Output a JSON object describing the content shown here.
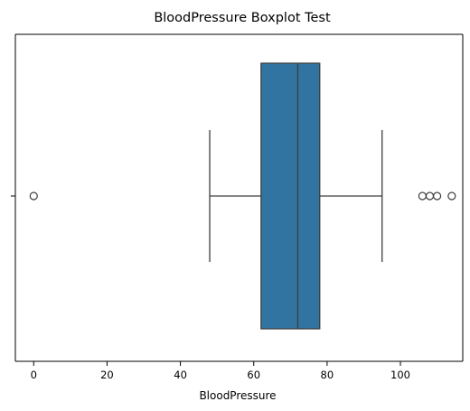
{
  "chart_data": {
    "type": "boxplot",
    "title": "BloodPressure Boxplot Test",
    "xlabel": "BloodPressure",
    "ylabel": "",
    "orientation": "horizontal",
    "xlim": [
      -5,
      117
    ],
    "xticks": [
      0,
      20,
      40,
      60,
      80,
      100
    ],
    "grid": false,
    "legend": "none",
    "colors": {
      "box_fill": "#3274a1",
      "line": "#3d3d3d",
      "axis": "#000000"
    },
    "box": {
      "whisker_low": 48,
      "q1": 62,
      "median": 72,
      "q3": 78,
      "whisker_high": 95
    },
    "outliers": [
      0,
      106,
      108,
      110,
      114
    ]
  }
}
